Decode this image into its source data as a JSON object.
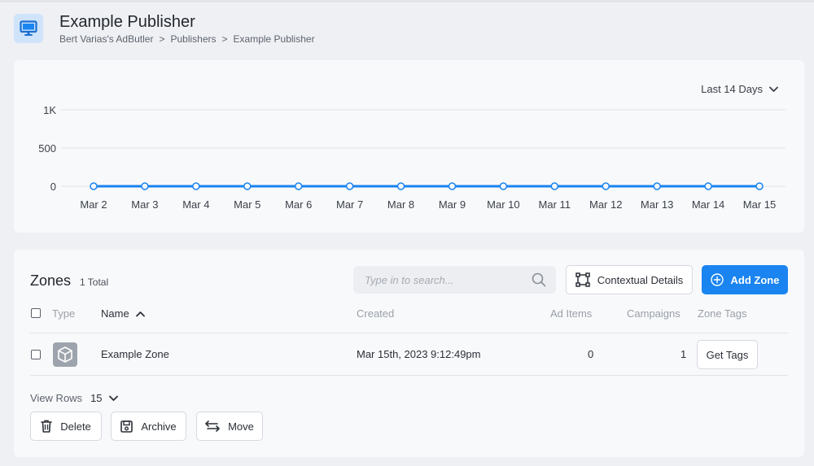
{
  "header": {
    "title": "Example Publisher",
    "breadcrumb": [
      "Bert Varias's AdButler",
      "Publishers",
      "Example Publisher"
    ],
    "breadcrumb_separator": ">"
  },
  "range_selector": {
    "label": "Last 14 Days"
  },
  "chart_data": {
    "type": "line",
    "x": [
      "Mar 2",
      "Mar 3",
      "Mar 4",
      "Mar 5",
      "Mar 6",
      "Mar 7",
      "Mar 8",
      "Mar 9",
      "Mar 10",
      "Mar 11",
      "Mar 12",
      "Mar 13",
      "Mar 14",
      "Mar 15"
    ],
    "series": [
      {
        "values": [
          0,
          0,
          0,
          0,
          0,
          0,
          0,
          0,
          0,
          0,
          0,
          0,
          0,
          0
        ],
        "color": "#1a84f0"
      }
    ],
    "yticks": [
      {
        "value": 0,
        "label": "0"
      },
      {
        "value": 500,
        "label": "500"
      },
      {
        "value": 1000,
        "label": "1K"
      }
    ],
    "ylim": [
      0,
      1000
    ],
    "grid": true,
    "legend": "none"
  },
  "zones": {
    "title": "Zones",
    "total_label": "1 Total",
    "search_placeholder": "Type in to search...",
    "contextual_button": "Contextual Details",
    "add_button": "Add Zone",
    "columns": {
      "type": "Type",
      "name": "Name",
      "created": "Created",
      "ad_items": "Ad Items",
      "campaigns": "Campaigns",
      "zone_tags": "Zone Tags"
    },
    "rows": [
      {
        "name": "Example Zone",
        "created": "Mar 15th, 2023 9:12:49pm",
        "ad_items": "0",
        "campaigns": "1",
        "tags_button": "Get Tags"
      }
    ],
    "view_rows_label": "View Rows",
    "view_rows_value": "15",
    "actions": {
      "delete": "Delete",
      "archive": "Archive",
      "move": "Move"
    }
  },
  "colors": {
    "accent": "#1a84f0",
    "grid": "#e1e3e7",
    "icon_bg": "#cfe3fb"
  }
}
